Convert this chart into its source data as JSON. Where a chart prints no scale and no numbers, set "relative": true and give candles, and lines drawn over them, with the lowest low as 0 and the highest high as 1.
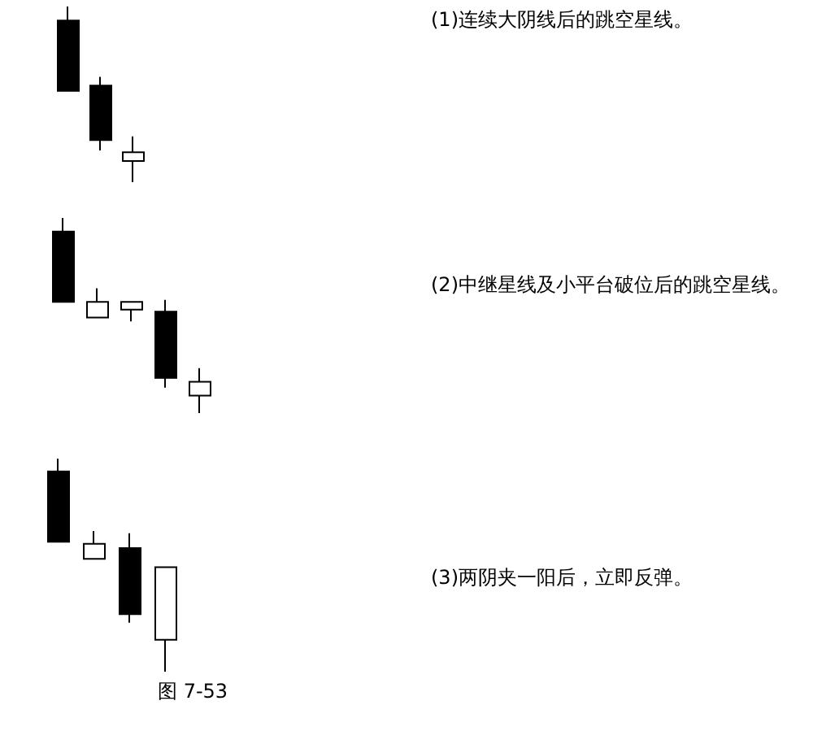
{
  "chart_data": [
    {
      "type": "candlestick",
      "relative": true,
      "categories": [
        null,
        null,
        null
      ],
      "ohlc": [
        [
          0.92,
          1.0,
          0.52,
          0.52
        ],
        [
          0.55,
          0.6,
          0.18,
          0.24
        ],
        [
          0.12,
          0.26,
          0.0,
          0.17
        ]
      ]
    },
    {
      "type": "candlestick",
      "relative": true,
      "categories": [
        null,
        null,
        null,
        null,
        null
      ],
      "ohlc": [
        [
          0.93,
          1.0,
          0.57,
          0.57
        ],
        [
          0.49,
          0.64,
          0.49,
          0.57
        ],
        [
          0.53,
          0.57,
          0.47,
          0.57
        ],
        [
          0.52,
          0.58,
          0.13,
          0.18
        ],
        [
          0.09,
          0.23,
          0.0,
          0.16
        ]
      ]
    },
    {
      "type": "candlestick",
      "relative": true,
      "categories": [
        null,
        null,
        null,
        null
      ],
      "ohlc": [
        [
          0.94,
          1.0,
          0.61,
          0.61
        ],
        [
          0.53,
          0.66,
          0.53,
          0.6
        ],
        [
          0.58,
          0.65,
          0.23,
          0.27
        ],
        [
          0.15,
          0.49,
          0.0,
          0.49
        ]
      ],
      "annotations": [
        "图 7-53"
      ]
    },
    {
      "type": "other",
      "annotations": [
        "(1)连续大阴线后的跳空星线。",
        "(2)中继星线及小平台破位后的跳空星线。",
        "(3)两阴夹一阳后，立即反弹。"
      ]
    }
  ]
}
